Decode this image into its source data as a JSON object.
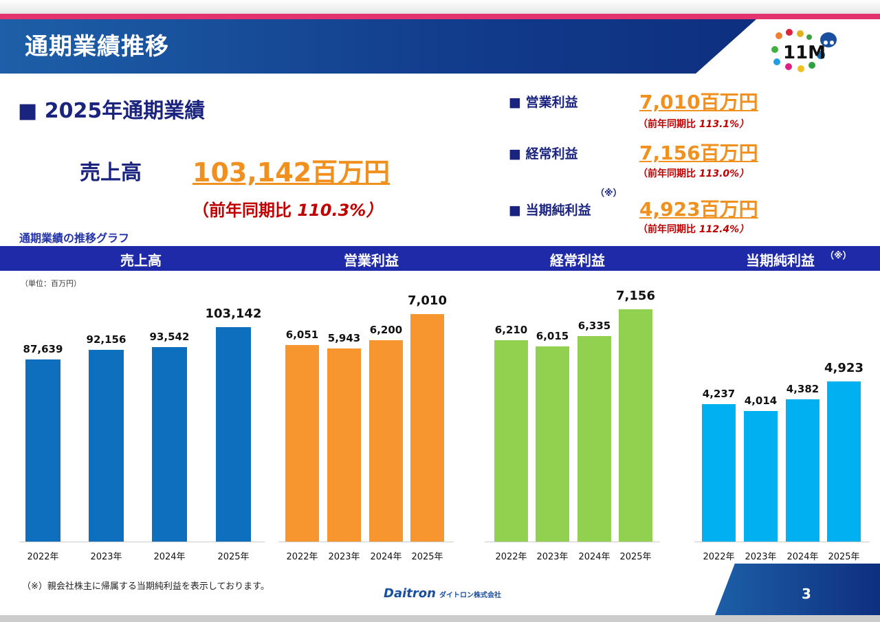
{
  "header": {
    "title": "通期業績推移",
    "logo_text": "11M"
  },
  "summary": {
    "heading": "■ 2025年通期業績",
    "sales_label": "売上高",
    "sales_value": "103,142百万円",
    "sales_yoy": "（前年同期比",
    "sales_yoy_pct": "110.3%）",
    "items": [
      {
        "label": "■ 営業利益",
        "value": "7,010百万円",
        "yoy": "（前年同期比",
        "pct": "113.1%）"
      },
      {
        "label": "■ 経常利益",
        "value": "7,156百万円",
        "yoy": "（前年同期比",
        "pct": "113.0%）"
      },
      {
        "label": "■ 当期純利益",
        "note": "（※）",
        "value": "4,923百万円",
        "yoy": "（前年同期比",
        "pct": "112.4%）"
      }
    ]
  },
  "graph_title": "通期業績の推移グラフ",
  "unit": "（単位：百万円）",
  "colors": {
    "sales": "#0f6fbf",
    "operating": "#f7962f",
    "ordinary": "#92d050",
    "net": "#00b0f0"
  },
  "chart_data": [
    {
      "type": "bar",
      "title": "売上高",
      "categories": [
        "2022年",
        "2023年",
        "2024年",
        "2025年"
      ],
      "values": [
        87639,
        92156,
        93542,
        103142
      ],
      "labels": [
        "87,639",
        "92,156",
        "93,542",
        "103,142"
      ],
      "ylim": [
        0,
        125000
      ]
    },
    {
      "type": "bar",
      "title": "営業利益",
      "categories": [
        "2022年",
        "2023年",
        "2024年",
        "2025年"
      ],
      "values": [
        6051,
        5943,
        6200,
        7010
      ],
      "labels": [
        "6,051",
        "5,943",
        "6,200",
        "7,010"
      ],
      "ylim": [
        0,
        8000
      ]
    },
    {
      "type": "bar",
      "title": "経常利益",
      "categories": [
        "2022年",
        "2023年",
        "2024年",
        "2025年"
      ],
      "values": [
        6210,
        6015,
        6335,
        7156
      ],
      "labels": [
        "6,210",
        "6,015",
        "6,335",
        "7,156"
      ],
      "ylim": [
        0,
        8000
      ]
    },
    {
      "type": "bar",
      "title": "当期純利益",
      "title_note": "（※）",
      "categories": [
        "2022年",
        "2023年",
        "2024年",
        "2025年"
      ],
      "values": [
        4237,
        4014,
        4382,
        4923
      ],
      "labels": [
        "4,237",
        "4,014",
        "4,382",
        "4,923"
      ],
      "ylim": [
        0,
        8000
      ]
    }
  ],
  "footer": {
    "note": "（※）親会社株主に帰属する当期純利益を表示しております。",
    "brand": "Daitron",
    "brand_jp": "ダイトロン株式会社",
    "page": "3"
  }
}
